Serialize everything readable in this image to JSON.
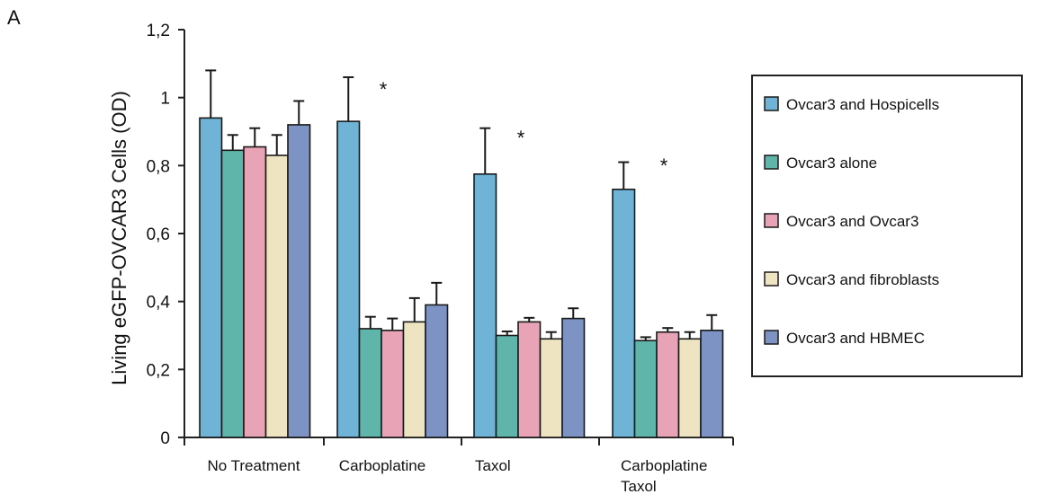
{
  "panel_label": "A",
  "chart_data": {
    "type": "bar",
    "ylabel": "Living eGFP-OVCAR3 Cells (OD)",
    "xlabel": "",
    "ylim": [
      0,
      1.2
    ],
    "yticks": [
      0,
      0.2,
      0.4,
      0.6,
      0.8,
      1.0,
      1.2
    ],
    "ytick_labels": [
      "0",
      "0,2",
      "0,4",
      "0,6",
      "0,8",
      "1",
      "1,2"
    ],
    "categories": [
      [
        "No Treatment"
      ],
      [
        "Carboplatine"
      ],
      [
        "Taxol"
      ],
      [
        "Carboplatine",
        "Taxol"
      ]
    ],
    "series": [
      {
        "name": "Ovcar3 and Hospicells",
        "color": "#6fb3d6",
        "values": [
          0.94,
          0.93,
          0.775,
          0.73
        ],
        "errors": [
          0.14,
          0.13,
          0.135,
          0.08
        ]
      },
      {
        "name": "Ovcar3 alone",
        "color": "#5fb5aa",
        "values": [
          0.845,
          0.32,
          0.3,
          0.285
        ],
        "errors": [
          0.045,
          0.035,
          0.012,
          0.01
        ]
      },
      {
        "name": "Ovcar3 and Ovcar3",
        "color": "#e8a4b6",
        "values": [
          0.855,
          0.315,
          0.34,
          0.31
        ],
        "errors": [
          0.055,
          0.035,
          0.012,
          0.012
        ]
      },
      {
        "name": "Ovcar3 and fibroblasts",
        "color": "#efe4c1",
        "values": [
          0.83,
          0.34,
          0.29,
          0.29
        ],
        "errors": [
          0.06,
          0.07,
          0.02,
          0.02
        ]
      },
      {
        "name": "Ovcar3 and HBMEC",
        "color": "#7c93c4",
        "values": [
          0.92,
          0.39,
          0.35,
          0.315
        ],
        "errors": [
          0.07,
          0.065,
          0.03,
          0.045
        ]
      }
    ],
    "significance": {
      "marker": "*",
      "categories": [
        1,
        2,
        3
      ]
    },
    "legend_position": "right"
  }
}
